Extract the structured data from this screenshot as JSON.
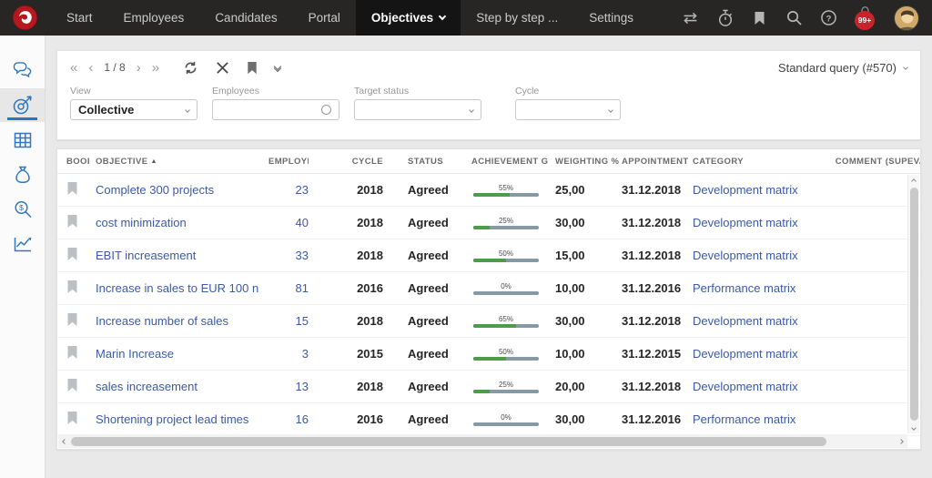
{
  "nav": {
    "items": [
      {
        "label": "Start",
        "active": false
      },
      {
        "label": "Employees",
        "active": false
      },
      {
        "label": "Candidates",
        "active": false
      },
      {
        "label": "Portal",
        "active": false
      },
      {
        "label": "Objectives",
        "active": true
      },
      {
        "label": "Step by step ...",
        "active": false
      },
      {
        "label": "Settings",
        "active": false
      }
    ],
    "notification_badge": "99+"
  },
  "sidebar": {
    "items": [
      {
        "icon": "chat-icon",
        "active": false
      },
      {
        "icon": "objectives-target-icon",
        "active": true
      },
      {
        "icon": "grid-icon",
        "active": false
      },
      {
        "icon": "moneybag-icon",
        "active": false
      },
      {
        "icon": "search-money-icon",
        "active": false
      },
      {
        "icon": "chart-line-icon",
        "active": false
      }
    ]
  },
  "toolbar": {
    "pagination": "1 / 8",
    "query_label": "Standard query (#570)"
  },
  "filters": {
    "view": {
      "label": "View",
      "value": "Collective"
    },
    "employees": {
      "label": "Employees",
      "value": ""
    },
    "target_status": {
      "label": "Target status",
      "value": ""
    },
    "cycle": {
      "label": "Cycle",
      "value": ""
    }
  },
  "table": {
    "columns": [
      "BOOI",
      "OBJECTIVE",
      "EMPLOYEES",
      "CYCLE",
      "STATUS",
      "ACHIEVEMENT G",
      "WEIGHTING %",
      "APPOINTMENT",
      "CATEGORY",
      "COMMENT (SUP",
      "EVA("
    ],
    "sort_indicator": "▲",
    "rows": [
      {
        "objective": "Complete 300 projects",
        "employees": "23",
        "cycle": "2018",
        "status": "Agreed",
        "achievement": {
          "pct": 55,
          "label": "55%"
        },
        "weighting": "25,00",
        "appointment": "31.12.2018",
        "category": "Development matrix"
      },
      {
        "objective": "cost minimization",
        "employees": "40",
        "cycle": "2018",
        "status": "Agreed",
        "achievement": {
          "pct": 25,
          "label": "25%"
        },
        "weighting": "30,00",
        "appointment": "31.12.2018",
        "category": "Development matrix"
      },
      {
        "objective": "EBIT increasement",
        "employees": "33",
        "cycle": "2018",
        "status": "Agreed",
        "achievement": {
          "pct": 50,
          "label": "50%"
        },
        "weighting": "15,00",
        "appointment": "31.12.2018",
        "category": "Development matrix"
      },
      {
        "objective": "Increase in sales to EUR 100 n",
        "employees": "81",
        "cycle": "2016",
        "status": "Agreed",
        "achievement": {
          "pct": 0,
          "label": "0%"
        },
        "weighting": "10,00",
        "appointment": "31.12.2016",
        "category": "Performance matrix"
      },
      {
        "objective": "Increase number of sales",
        "employees": "15",
        "cycle": "2018",
        "status": "Agreed",
        "achievement": {
          "pct": 65,
          "label": "65%"
        },
        "weighting": "30,00",
        "appointment": "31.12.2018",
        "category": "Development matrix"
      },
      {
        "objective": "Marin Increase",
        "employees": "3",
        "cycle": "2015",
        "status": "Agreed",
        "achievement": {
          "pct": 50,
          "label": "50%"
        },
        "weighting": "10,00",
        "appointment": "31.12.2015",
        "category": "Development matrix"
      },
      {
        "objective": "sales increasement",
        "employees": "13",
        "cycle": "2018",
        "status": "Agreed",
        "achievement": {
          "pct": 25,
          "label": "25%"
        },
        "weighting": "20,00",
        "appointment": "31.12.2018",
        "category": "Development matrix"
      },
      {
        "objective": "Shortening project lead times",
        "employees": "16",
        "cycle": "2016",
        "status": "Agreed",
        "achievement": {
          "pct": 0,
          "label": "0%"
        },
        "weighting": "30,00",
        "appointment": "31.12.2016",
        "category": "Performance matrix"
      }
    ]
  },
  "colors": {
    "nav_bg": "#272625",
    "nav_active_bg": "#141414",
    "brand_red": "#c8222b",
    "accent_blue": "#2e74bd",
    "link_blue": "#3b5aa7",
    "bar_green": "#4e9b49",
    "bar_gray": "#8799a4"
  }
}
